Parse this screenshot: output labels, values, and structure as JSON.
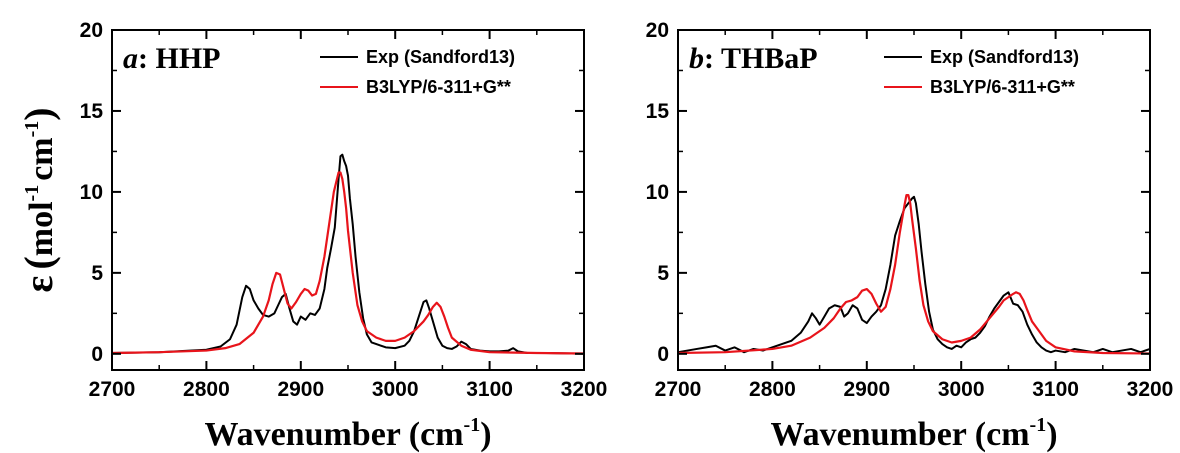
{
  "figure": {
    "ylabel_symbol": "ε",
    "ylabel_open": "(",
    "ylabel_unit1": "mol",
    "ylabel_sup1": "-1",
    "ylabel_unit2": "cm",
    "ylabel_sup2": "-1",
    "ylabel_close": ")",
    "xlabel_text": "Wavenumber (cm",
    "xlabel_sup": "-1",
    "xlabel_close": ")"
  },
  "colors": {
    "exp": "#000000",
    "calc": "#e8141b",
    "frame": "#000000"
  },
  "chart_data": [
    {
      "type": "line",
      "panel_letter": "a",
      "panel_name": ": HHP",
      "xlim": [
        2700,
        3200
      ],
      "ylim": [
        -1,
        20
      ],
      "xticks": [
        2700,
        2800,
        2900,
        3000,
        3100,
        3200
      ],
      "yticks": [
        0,
        5,
        10,
        15,
        20
      ],
      "legend_position": "top-right",
      "series": [
        {
          "name": "Exp (Sandford13)",
          "color": "#000000",
          "x": [
            2700,
            2750,
            2800,
            2815,
            2825,
            2832,
            2838,
            2842,
            2846,
            2850,
            2855,
            2860,
            2866,
            2872,
            2876,
            2880,
            2884,
            2888,
            2892,
            2896,
            2900,
            2905,
            2910,
            2915,
            2920,
            2925,
            2928,
            2932,
            2936,
            2940,
            2942,
            2944,
            2946,
            2948,
            2950,
            2952,
            2955,
            2958,
            2962,
            2966,
            2970,
            2975,
            2980,
            2990,
            3000,
            3010,
            3015,
            3020,
            3025,
            3030,
            3033,
            3036,
            3040,
            3045,
            3050,
            3055,
            3060,
            3065,
            3070,
            3075,
            3080,
            3090,
            3100,
            3110,
            3120,
            3125,
            3130,
            3140,
            3160,
            3200
          ],
          "y": [
            0.05,
            0.1,
            0.25,
            0.45,
            0.9,
            1.8,
            3.5,
            4.2,
            4.0,
            3.3,
            2.8,
            2.4,
            2.3,
            2.5,
            3.0,
            3.5,
            3.7,
            2.8,
            2.0,
            1.8,
            2.3,
            2.1,
            2.5,
            2.4,
            2.8,
            4.0,
            5.3,
            6.5,
            7.8,
            10.8,
            12.2,
            12.3,
            11.9,
            11.6,
            11.0,
            9.6,
            8.0,
            6.0,
            3.8,
            2.2,
            1.2,
            0.7,
            0.6,
            0.4,
            0.35,
            0.5,
            0.8,
            1.4,
            2.3,
            3.2,
            3.3,
            2.8,
            2.0,
            1.0,
            0.5,
            0.35,
            0.3,
            0.45,
            0.75,
            0.6,
            0.3,
            0.2,
            0.15,
            0.15,
            0.2,
            0.35,
            0.15,
            0.05,
            0.05,
            0.0
          ]
        },
        {
          "name": "B3LYP/6-311+G**",
          "color": "#e8141b",
          "x": [
            2700,
            2750,
            2800,
            2820,
            2835,
            2850,
            2860,
            2866,
            2870,
            2874,
            2878,
            2882,
            2886,
            2890,
            2895,
            2900,
            2904,
            2908,
            2912,
            2916,
            2920,
            2925,
            2930,
            2935,
            2940,
            2942,
            2944,
            2946,
            2948,
            2950,
            2955,
            2960,
            2965,
            2970,
            2980,
            2990,
            3000,
            3010,
            3020,
            3030,
            3035,
            3040,
            3044,
            3048,
            3052,
            3056,
            3060,
            3070,
            3080,
            3100,
            3150,
            3200
          ],
          "y": [
            0.05,
            0.1,
            0.2,
            0.35,
            0.6,
            1.3,
            2.3,
            3.3,
            4.3,
            5.0,
            4.9,
            4.0,
            3.1,
            2.8,
            3.2,
            3.7,
            4.0,
            3.9,
            3.6,
            3.7,
            4.5,
            6.0,
            8.0,
            10.0,
            11.2,
            11.2,
            10.8,
            10.0,
            9.0,
            7.6,
            5.0,
            3.0,
            2.0,
            1.4,
            1.0,
            0.8,
            0.8,
            1.0,
            1.4,
            2.0,
            2.4,
            2.9,
            3.15,
            2.9,
            2.3,
            1.6,
            1.0,
            0.5,
            0.25,
            0.1,
            0.05,
            0.02
          ]
        }
      ]
    },
    {
      "type": "line",
      "panel_letter": "b",
      "panel_name": ": THBaP",
      "xlim": [
        2700,
        3200
      ],
      "ylim": [
        -1,
        20
      ],
      "xticks": [
        2700,
        2800,
        2900,
        3000,
        3100,
        3200
      ],
      "yticks": [
        0,
        5,
        10,
        15,
        20
      ],
      "legend_position": "top-right",
      "series": [
        {
          "name": "Exp (Sandford13)",
          "color": "#000000",
          "x": [
            2700,
            2710,
            2720,
            2730,
            2740,
            2750,
            2760,
            2770,
            2780,
            2790,
            2800,
            2810,
            2820,
            2830,
            2838,
            2842,
            2846,
            2850,
            2855,
            2860,
            2866,
            2872,
            2876,
            2880,
            2885,
            2890,
            2895,
            2900,
            2905,
            2910,
            2915,
            2920,
            2925,
            2930,
            2935,
            2940,
            2944,
            2948,
            2950,
            2952,
            2955,
            2958,
            2962,
            2966,
            2970,
            2975,
            2980,
            2985,
            2990,
            2995,
            3000,
            3005,
            3010,
            3015,
            3020,
            3025,
            3030,
            3035,
            3040,
            3045,
            3050,
            3055,
            3060,
            3065,
            3070,
            3075,
            3080,
            3085,
            3090,
            3095,
            3100,
            3110,
            3120,
            3130,
            3140,
            3150,
            3160,
            3170,
            3180,
            3190,
            3200
          ],
          "y": [
            0.1,
            0.2,
            0.3,
            0.4,
            0.5,
            0.2,
            0.4,
            0.1,
            0.3,
            0.2,
            0.4,
            0.6,
            0.8,
            1.3,
            2.0,
            2.5,
            2.2,
            1.8,
            2.3,
            2.8,
            3.0,
            2.9,
            2.3,
            2.5,
            3.0,
            2.8,
            2.1,
            1.9,
            2.3,
            2.6,
            3.0,
            4.0,
            5.5,
            7.3,
            8.2,
            9.0,
            9.3,
            9.6,
            9.7,
            9.3,
            8.0,
            6.3,
            4.3,
            2.6,
            1.5,
            0.9,
            0.6,
            0.4,
            0.3,
            0.5,
            0.4,
            0.7,
            0.9,
            1.0,
            1.3,
            1.7,
            2.3,
            2.8,
            3.2,
            3.6,
            3.8,
            3.1,
            3.0,
            2.6,
            1.8,
            1.2,
            0.7,
            0.4,
            0.2,
            0.1,
            0.2,
            0.1,
            0.3,
            0.2,
            0.1,
            0.3,
            0.1,
            0.2,
            0.3,
            0.1,
            0.3
          ]
        },
        {
          "name": "B3LYP/6-311+G**",
          "color": "#e8141b",
          "x": [
            2700,
            2750,
            2800,
            2820,
            2840,
            2855,
            2865,
            2872,
            2878,
            2884,
            2890,
            2895,
            2900,
            2905,
            2910,
            2915,
            2920,
            2925,
            2930,
            2935,
            2940,
            2942,
            2944,
            2946,
            2948,
            2952,
            2956,
            2960,
            2965,
            2970,
            2980,
            2990,
            3000,
            3010,
            3020,
            3030,
            3040,
            3045,
            3050,
            3055,
            3058,
            3062,
            3066,
            3070,
            3075,
            3080,
            3085,
            3090,
            3100,
            3120,
            3150,
            3200
          ],
          "y": [
            0.05,
            0.1,
            0.3,
            0.5,
            1.0,
            1.6,
            2.2,
            2.8,
            3.2,
            3.3,
            3.5,
            3.9,
            4.0,
            3.7,
            3.1,
            2.6,
            2.9,
            4.0,
            5.5,
            7.5,
            9.2,
            9.8,
            9.8,
            9.3,
            8.3,
            6.5,
            4.5,
            3.0,
            2.0,
            1.4,
            0.9,
            0.7,
            0.8,
            1.0,
            1.5,
            2.2,
            2.9,
            3.3,
            3.5,
            3.7,
            3.8,
            3.7,
            3.3,
            2.7,
            2.0,
            1.6,
            1.2,
            0.8,
            0.4,
            0.15,
            0.05,
            0.02
          ]
        }
      ]
    }
  ]
}
